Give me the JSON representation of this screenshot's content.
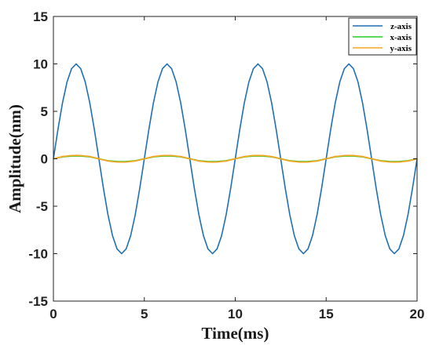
{
  "chart_data": {
    "type": "line",
    "xlabel": "Time(ms)",
    "ylabel": "Amplitude(nm)",
    "xlim": [
      0,
      20
    ],
    "ylim": [
      -15,
      15
    ],
    "xticks": [
      0,
      5,
      10,
      15,
      20
    ],
    "yticks": [
      -15,
      -10,
      -5,
      0,
      5,
      10,
      15
    ],
    "grid": false,
    "legend_position": "top-right",
    "series": [
      {
        "name": "z-axis",
        "color": "#1f6fb4",
        "x": [
          0,
          0.25,
          0.5,
          0.75,
          1.0,
          1.25,
          1.5,
          1.75,
          2.0,
          2.25,
          2.5,
          2.75,
          3.0,
          3.25,
          3.5,
          3.75,
          4.0,
          4.25,
          4.5,
          4.75,
          5.0,
          5.25,
          5.5,
          5.75,
          6.0,
          6.25,
          6.5,
          6.75,
          7.0,
          7.25,
          7.5,
          7.75,
          8.0,
          8.25,
          8.5,
          8.75,
          9.0,
          9.25,
          9.5,
          9.75,
          10.0,
          10.25,
          10.5,
          10.75,
          11.0,
          11.25,
          11.5,
          11.75,
          12.0,
          12.25,
          12.5,
          12.75,
          13.0,
          13.25,
          13.5,
          13.75,
          14.0,
          14.25,
          14.5,
          14.75,
          15.0,
          15.25,
          15.5,
          15.75,
          16.0,
          16.25,
          16.5,
          16.75,
          17.0,
          17.25,
          17.5,
          17.75,
          18.0,
          18.25,
          18.5,
          18.75,
          19.0,
          19.25,
          19.5,
          19.75,
          20.0
        ],
        "values": [
          0,
          3.1,
          5.9,
          8.1,
          9.5,
          10.0,
          9.5,
          8.1,
          5.9,
          3.1,
          0,
          -3.1,
          -5.9,
          -8.1,
          -9.5,
          -10.0,
          -9.5,
          -8.1,
          -5.9,
          -3.1,
          0,
          3.1,
          5.9,
          8.1,
          9.5,
          10.0,
          9.5,
          8.1,
          5.9,
          3.1,
          0,
          -3.1,
          -5.9,
          -8.1,
          -9.5,
          -10.0,
          -9.5,
          -8.1,
          -5.9,
          -3.1,
          0,
          3.1,
          5.9,
          8.1,
          9.5,
          10.0,
          9.5,
          8.1,
          5.9,
          3.1,
          0,
          -3.1,
          -5.9,
          -8.1,
          -9.5,
          -10.0,
          -9.5,
          -8.1,
          -5.9,
          -3.1,
          0,
          3.1,
          5.9,
          8.1,
          9.5,
          10.0,
          9.5,
          8.1,
          5.9,
          3.1,
          0,
          -3.1,
          -5.9,
          -8.1,
          -9.5,
          -10.0,
          -9.5,
          -8.1,
          -5.9,
          -3.1,
          0
        ]
      },
      {
        "name": "x-axis",
        "color": "#22cc22",
        "x": [
          0,
          0.5,
          1.0,
          1.25,
          1.5,
          2.0,
          2.5,
          3.0,
          3.5,
          3.75,
          4.0,
          4.5,
          5.0,
          5.5,
          6.0,
          6.25,
          6.5,
          7.0,
          7.5,
          8.0,
          8.5,
          8.75,
          9.0,
          9.5,
          10.0,
          10.5,
          11.0,
          11.25,
          11.5,
          12.0,
          12.5,
          13.0,
          13.5,
          13.75,
          14.0,
          14.5,
          15.0,
          15.5,
          16.0,
          16.25,
          16.5,
          17.0,
          17.5,
          18.0,
          18.5,
          18.75,
          19.0,
          19.5,
          20.0
        ],
        "values": [
          0,
          0.21,
          0.29,
          0.3,
          0.29,
          0.21,
          0,
          -0.21,
          -0.29,
          -0.3,
          -0.29,
          -0.21,
          0,
          0.21,
          0.29,
          0.3,
          0.29,
          0.21,
          0,
          -0.21,
          -0.29,
          -0.3,
          -0.29,
          -0.21,
          0,
          0.21,
          0.29,
          0.3,
          0.29,
          0.21,
          0,
          -0.21,
          -0.29,
          -0.3,
          -0.29,
          -0.21,
          0,
          0.21,
          0.29,
          0.3,
          0.29,
          0.21,
          0,
          -0.21,
          -0.29,
          -0.3,
          -0.29,
          -0.21,
          0
        ]
      },
      {
        "name": "y-axis",
        "color": "#f5a623",
        "x": [
          0,
          0.5,
          1.0,
          1.25,
          1.5,
          2.0,
          2.5,
          3.0,
          3.5,
          3.75,
          4.0,
          4.5,
          5.0,
          5.5,
          6.0,
          6.25,
          6.5,
          7.0,
          7.5,
          8.0,
          8.5,
          8.75,
          9.0,
          9.5,
          10.0,
          10.5,
          11.0,
          11.25,
          11.5,
          12.0,
          12.5,
          13.0,
          13.5,
          13.75,
          14.0,
          14.5,
          15.0,
          15.5,
          16.0,
          16.25,
          16.5,
          17.0,
          17.5,
          18.0,
          18.5,
          18.75,
          19.0,
          19.5,
          20.0
        ],
        "values": [
          0,
          0.24,
          0.34,
          0.35,
          0.34,
          0.24,
          0,
          -0.24,
          -0.34,
          -0.35,
          -0.34,
          -0.24,
          0,
          0.24,
          0.34,
          0.35,
          0.34,
          0.24,
          0,
          -0.24,
          -0.34,
          -0.35,
          -0.34,
          -0.24,
          0,
          0.24,
          0.34,
          0.35,
          0.34,
          0.24,
          0,
          -0.24,
          -0.34,
          -0.35,
          -0.34,
          -0.24,
          0,
          0.24,
          0.34,
          0.35,
          0.34,
          0.24,
          0,
          -0.24,
          -0.34,
          -0.35,
          -0.34,
          -0.24,
          0
        ]
      }
    ]
  }
}
